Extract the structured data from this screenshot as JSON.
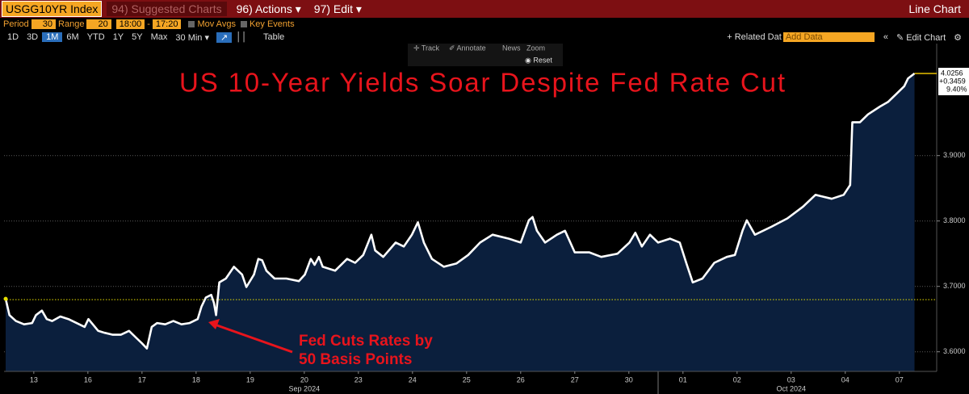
{
  "toolbar": {
    "security": "USGG10YR Index",
    "suggested": "94) Suggested Charts",
    "actions": "96) Actions ▾",
    "edit": "97) Edit ▾",
    "chart_kind": "Line Chart",
    "period_label": "Period",
    "period": "30",
    "range_label": "Range",
    "range": "20",
    "start": "18:00",
    "dash": "-",
    "end": "17:20",
    "mov_avgs": "Mov Avgs",
    "key_events": "Key Events",
    "ranges": [
      "1D",
      "3D",
      "1M",
      "6M",
      "YTD",
      "1Y",
      "5Y",
      "Max"
    ],
    "interval": "30 Min ▾",
    "table": "Table",
    "related": "+ Related Dat",
    "add_data": "Add Data",
    "collapse": "«",
    "edit_chart": "✎ Edit Chart",
    "settings": "⚙",
    "track": "✛ Track",
    "annotate": "✐ Annotate",
    "news": "News",
    "zoom": "Zoom",
    "reset": "◉ Reset"
  },
  "chart_data": {
    "type": "area",
    "title": "US 10-Year Yields Soar Despite Fed Rate Cut",
    "annotation": [
      "Fed Cuts Rates by",
      "50 Basis Points"
    ],
    "series": [
      {
        "name": "USGG10YR Index",
        "color": "#ffffff",
        "fill": "#0b1f3d",
        "x": [
          -0.52,
          -0.45,
          -0.33,
          -0.18,
          -0.03,
          0.04,
          0.15,
          0.24,
          0.34,
          0.49,
          0.64,
          0.79,
          0.94,
          1.01,
          1.09,
          1.19,
          1.31,
          1.46,
          1.61,
          1.76,
          1.91,
          2.0,
          2.09,
          2.18,
          2.28,
          2.43,
          2.58,
          2.73,
          2.88,
          3.03,
          3.1,
          3.18,
          3.28,
          3.33,
          3.37,
          3.43,
          3.55,
          3.7,
          3.85,
          3.93,
          4.07,
          4.15,
          4.22,
          4.3,
          4.45,
          4.67,
          4.9,
          5.01,
          5.12,
          5.19,
          5.27,
          5.34,
          5.57,
          5.79,
          5.94,
          6.09,
          6.24,
          6.31,
          6.46,
          6.69,
          6.84,
          6.99,
          7.1,
          7.21,
          7.36,
          7.58,
          7.81,
          8.03,
          8.25,
          8.48,
          8.78,
          9.0,
          9.15,
          9.22,
          9.3,
          9.45,
          9.67,
          9.82,
          10.0,
          10.27,
          10.49,
          10.79,
          11.01,
          11.12,
          11.24,
          11.39,
          11.54,
          11.76,
          11.94,
          12.06,
          12.18,
          12.36,
          12.58,
          12.81,
          12.96,
          13.1,
          13.18,
          13.33,
          13.63,
          13.93,
          14.22,
          14.45,
          14.75,
          14.97,
          15.09,
          15.13,
          15.27,
          15.42,
          15.64,
          15.79,
          15.94,
          16.09,
          16.16,
          16.28
        ],
        "values": [
          3.681,
          3.656,
          3.647,
          3.642,
          3.644,
          3.656,
          3.663,
          3.65,
          3.647,
          3.654,
          3.65,
          3.644,
          3.638,
          3.65,
          3.642,
          3.632,
          3.629,
          3.626,
          3.626,
          3.632,
          3.62,
          3.613,
          3.605,
          3.638,
          3.644,
          3.642,
          3.647,
          3.642,
          3.644,
          3.65,
          3.669,
          3.683,
          3.687,
          3.675,
          3.656,
          3.706,
          3.712,
          3.73,
          3.718,
          3.699,
          3.718,
          3.742,
          3.74,
          3.724,
          3.712,
          3.712,
          3.708,
          3.718,
          3.742,
          3.733,
          3.745,
          3.73,
          3.724,
          3.742,
          3.736,
          3.748,
          3.779,
          3.755,
          3.745,
          3.767,
          3.761,
          3.779,
          3.798,
          3.767,
          3.742,
          3.73,
          3.735,
          3.748,
          3.767,
          3.779,
          3.773,
          3.767,
          3.801,
          3.806,
          3.785,
          3.767,
          3.779,
          3.785,
          3.752,
          3.752,
          3.745,
          3.75,
          3.767,
          3.782,
          3.761,
          3.779,
          3.767,
          3.773,
          3.767,
          3.736,
          3.706,
          3.712,
          3.736,
          3.745,
          3.748,
          3.785,
          3.801,
          3.779,
          3.791,
          3.804,
          3.822,
          3.84,
          3.834,
          3.84,
          3.855,
          3.951,
          3.951,
          3.963,
          3.975,
          3.982,
          3.994,
          4.006,
          4.018,
          4.0256
        ]
      }
    ],
    "last_value": 4.0256,
    "change_label": "+0.3459",
    "change_pct_label": "9.40%",
    "reference_line": 3.6797,
    "xlim": [
      -0.55,
      16.69
    ],
    "xticks": [
      {
        "value": 0,
        "label": "13"
      },
      {
        "value": 1,
        "label": "16"
      },
      {
        "value": 2,
        "label": "17"
      },
      {
        "value": 3,
        "label": "18"
      },
      {
        "value": 4,
        "label": "19"
      },
      {
        "value": 5,
        "label": "20"
      },
      {
        "value": 6,
        "label": "23"
      },
      {
        "value": 7,
        "label": "24"
      },
      {
        "value": 8,
        "label": "25"
      },
      {
        "value": 9,
        "label": "26"
      },
      {
        "value": 10,
        "label": "27"
      },
      {
        "value": 11,
        "label": "30"
      },
      {
        "value": 12,
        "label": "01"
      },
      {
        "value": 13,
        "label": "02"
      },
      {
        "value": 14,
        "label": "03"
      },
      {
        "value": 15,
        "label": "04"
      },
      {
        "value": 16,
        "label": "07"
      }
    ],
    "x_group_labels": [
      {
        "value": 5,
        "label": "Sep 2024"
      },
      {
        "value": 14,
        "label": "Oct 2024"
      }
    ],
    "ylim": [
      3.57,
      4.07
    ],
    "yticks": [
      {
        "value": 3.6,
        "label": "3.6000"
      },
      {
        "value": 3.7,
        "label": "3.7000"
      },
      {
        "value": 3.8,
        "label": "3.8000"
      },
      {
        "value": 3.9,
        "label": "3.9000"
      }
    ],
    "grid": true
  }
}
